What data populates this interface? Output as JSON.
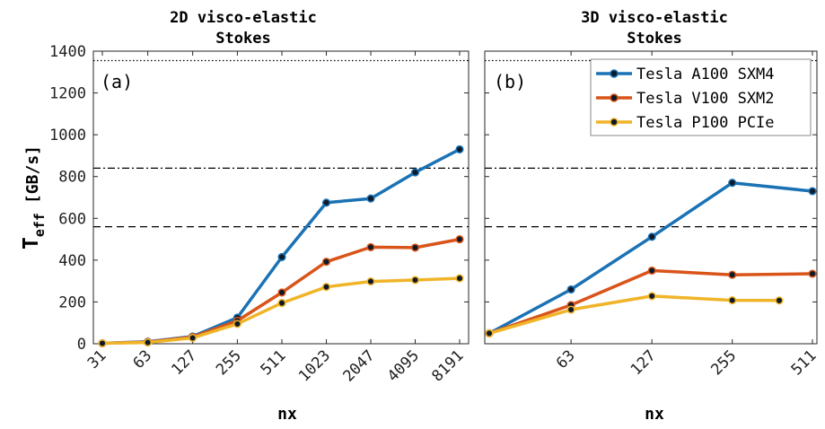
{
  "chart_data": [
    {
      "type": "line",
      "panel_label": "(a)",
      "title_lines": [
        "2D visco-elastic",
        "Stokes"
      ],
      "xlabel": "nx",
      "ylabel": "T",
      "ylabel_sub": "eff",
      "ylabel_unit": "[GB/s]",
      "x_scale": "log2",
      "categories": [
        "31",
        "63",
        "127",
        "255",
        "511",
        "1023",
        "2047",
        "4095",
        "8191"
      ],
      "xlim": [
        31,
        8191
      ],
      "ylim": [
        0,
        1400
      ],
      "yticks": [
        0,
        200,
        400,
        600,
        800,
        1000,
        1200,
        1400
      ],
      "grid": false,
      "legend": false,
      "series": [
        {
          "color": "#1a72b5",
          "x": [
            31,
            63,
            127,
            255,
            511,
            1023,
            2047,
            4095,
            8191
          ],
          "values": [
            2,
            10,
            35,
            125,
            415,
            675,
            695,
            820,
            930
          ]
        },
        {
          "color": "#d95419",
          "x": [
            31,
            63,
            127,
            255,
            511,
            1023,
            2047,
            4095,
            8191
          ],
          "values": [
            2,
            8,
            32,
            110,
            245,
            392,
            462,
            460,
            500
          ]
        },
        {
          "color": "#f0b429",
          "x": [
            31,
            63,
            127,
            255,
            511,
            1023,
            2047,
            4095,
            8191
          ],
          "values": [
            2,
            6,
            28,
            95,
            195,
            272,
            298,
            305,
            313
          ]
        }
      ],
      "reference_lines": [
        {
          "y": 1355,
          "style": "dotted"
        },
        {
          "y": 840,
          "style": "dashdot"
        },
        {
          "y": 560,
          "style": "dashed"
        }
      ]
    },
    {
      "type": "line",
      "panel_label": "(b)",
      "title_lines": [
        "3D visco-elastic",
        "Stokes"
      ],
      "xlabel": "nx",
      "x_scale": "log2",
      "categories": [
        "63",
        "127",
        "255",
        "511"
      ],
      "xlim": [
        31,
        511
      ],
      "ylim": [
        0,
        1400
      ],
      "yticks": [
        0,
        200,
        400,
        600,
        800,
        1000,
        1200,
        1400
      ],
      "show_ytick_labels": false,
      "grid": false,
      "legend": "top-right",
      "series": [
        {
          "name": "Tesla A100 SXM4",
          "color": "#1a72b5",
          "x": [
            31,
            63,
            127,
            255,
            511
          ],
          "values": [
            50,
            260,
            512,
            770,
            730
          ]
        },
        {
          "name": "Tesla V100 SXM2",
          "color": "#d95419",
          "x": [
            31,
            63,
            127,
            255,
            511
          ],
          "values": [
            50,
            185,
            350,
            330,
            335
          ]
        },
        {
          "name": "Tesla P100 PCIe",
          "color": "#f0b429",
          "x": [
            31,
            63,
            127,
            255,
            383
          ],
          "values": [
            50,
            163,
            228,
            208,
            207
          ]
        }
      ],
      "reference_lines": [
        {
          "y": 1355,
          "style": "dotted"
        },
        {
          "y": 840,
          "style": "dashdot"
        },
        {
          "y": 560,
          "style": "dashed"
        }
      ]
    }
  ]
}
